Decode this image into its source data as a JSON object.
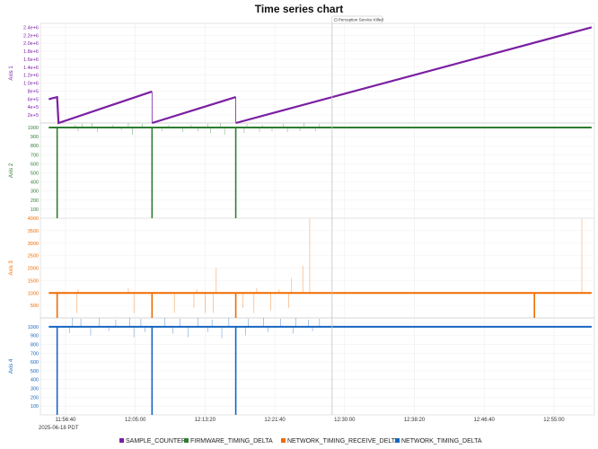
{
  "chart_data": {
    "type": "line",
    "title": "Time series chart",
    "date_label": "2025-06-18 PDT",
    "x_range": [
      "11:53:40",
      "12:59:50"
    ],
    "x_ticks": [
      "11:56:40",
      "12:05:00",
      "12:13:20",
      "12:21:40",
      "12:30:00",
      "12:38:20",
      "12:46:40",
      "12:55:00"
    ],
    "annotation": {
      "time": "12:28:30",
      "label": "Perception Service Killed"
    },
    "legend_position": "bottom",
    "grid": true,
    "series": [
      {
        "name": "SAMPLE_COUNTER",
        "panel": 0,
        "color": "#7b1fa2"
      },
      {
        "name": "FIRMWARE_TIMING_DELTA",
        "panel": 1,
        "color": "#2e7d32"
      },
      {
        "name": "NETWORK_TIMING_RECEIVE_DELTA",
        "panel": 2,
        "color": "#ef6c00"
      },
      {
        "name": "NETWORK_TIMING_DELTA",
        "panel": 3,
        "color": "#1565c0"
      }
    ],
    "panels": [
      {
        "ylabel": "Axis 1",
        "color": "#7b1fa2",
        "ylim": [
          0,
          2500000
        ],
        "yticks": [
          "2e+5",
          "4e+5",
          "6e+5",
          "8e+5",
          "1.0e+6",
          "1.2e+6",
          "1.4e+6",
          "1.6e+6",
          "1.8e+6",
          "2.0e+6",
          "2.2e+6",
          "2.4e+6"
        ],
        "ytick_values": [
          200000,
          400000,
          600000,
          800000,
          1000000,
          1200000,
          1400000,
          1600000,
          1800000,
          2000000,
          2200000,
          2400000
        ],
        "segments": [
          [
            [
              "11:54:40",
              600000
            ],
            [
              "11:55:40",
              650000
            ],
            [
              "11:55:50",
              0
            ],
            [
              "12:07:00",
              790000
            ]
          ],
          [
            [
              "12:07:00",
              0
            ],
            [
              "12:17:00",
              650000
            ]
          ],
          [
            [
              "12:17:00",
              0
            ],
            [
              "12:59:30",
              2400000
            ]
          ]
        ]
      },
      {
        "ylabel": "Axis 2",
        "color": "#2e7d32",
        "ylim": [
          0,
          1050
        ],
        "yticks": [
          "100",
          "200",
          "300",
          "400",
          "500",
          "600",
          "700",
          "800",
          "900",
          "1000"
        ],
        "ytick_values": [
          100,
          200,
          300,
          400,
          500,
          600,
          700,
          800,
          900,
          1000
        ],
        "baseline": 1000,
        "line_start": "11:54:40",
        "line_end": "12:59:30",
        "drops": [
          [
            "11:55:40",
            0
          ],
          [
            "12:07:00",
            0
          ],
          [
            "12:17:00",
            0
          ]
        ],
        "spikes": [
          [
            "11:57:50",
            1030
          ],
          [
            "11:58:40",
            1040
          ],
          [
            "11:59:50",
            1050
          ],
          [
            "12:02:20",
            1030
          ],
          [
            "12:04:10",
            1050
          ],
          [
            "12:05:50",
            1040
          ],
          [
            "12:09:00",
            1030
          ],
          [
            "12:11:40",
            1030
          ],
          [
            "12:13:40",
            1040
          ],
          [
            "12:15:10",
            1050
          ],
          [
            "12:18:20",
            1040
          ],
          [
            "12:20:10",
            1030
          ],
          [
            "12:22:40",
            1040
          ],
          [
            "12:25:10",
            1050
          ],
          [
            "12:27:00",
            1040
          ]
        ],
        "dips": [
          [
            "11:58:10",
            960
          ],
          [
            "12:00:30",
            950
          ],
          [
            "12:03:20",
            970
          ],
          [
            "12:04:40",
            920
          ],
          [
            "12:08:10",
            960
          ],
          [
            "12:10:40",
            950
          ],
          [
            "12:12:30",
            960
          ],
          [
            "12:14:00",
            940
          ],
          [
            "12:15:40",
            920
          ],
          [
            "12:18:00",
            940
          ],
          [
            "12:19:50",
            950
          ],
          [
            "12:21:20",
            960
          ],
          [
            "12:23:10",
            950
          ],
          [
            "12:24:40",
            960
          ],
          [
            "12:26:30",
            960
          ]
        ]
      },
      {
        "ylabel": "Axis 3",
        "color": "#ef6c00",
        "ylim": [
          0,
          4000
        ],
        "yticks": [
          "500",
          "1000",
          "1500",
          "2000",
          "2500",
          "3000",
          "3500",
          "4000"
        ],
        "ytick_values": [
          500,
          1000,
          1500,
          2000,
          2500,
          3000,
          3500,
          4000
        ],
        "baseline": 1000,
        "line_start": "11:54:40",
        "line_end": "12:59:30",
        "drops": [
          [
            "11:55:40",
            0
          ],
          [
            "12:07:00",
            0
          ],
          [
            "12:17:00",
            0
          ],
          [
            "12:52:40",
            0
          ]
        ],
        "spikes": [
          [
            "11:58:10",
            1150
          ],
          [
            "12:04:10",
            1200
          ],
          [
            "12:12:20",
            1150
          ],
          [
            "12:14:40",
            2000
          ],
          [
            "12:19:30",
            1200
          ],
          [
            "12:22:10",
            1150
          ],
          [
            "12:23:40",
            1600
          ],
          [
            "12:25:00",
            2100
          ],
          [
            "12:25:50",
            3990
          ],
          [
            "12:58:20",
            3990
          ]
        ],
        "dips": [
          [
            "11:58:00",
            200
          ],
          [
            "12:04:50",
            200
          ],
          [
            "12:09:40",
            200
          ],
          [
            "12:12:00",
            400
          ],
          [
            "12:13:20",
            200
          ],
          [
            "12:14:20",
            200
          ],
          [
            "12:17:50",
            400
          ],
          [
            "12:19:10",
            200
          ],
          [
            "12:21:10",
            300
          ],
          [
            "12:23:20",
            400
          ]
        ]
      },
      {
        "ylabel": "Axis 4",
        "color": "#1565c0",
        "ylim": [
          0,
          1100
        ],
        "yticks": [
          "100",
          "200",
          "300",
          "400",
          "500",
          "600",
          "700",
          "800",
          "900",
          "1000"
        ],
        "ytick_values": [
          100,
          200,
          300,
          400,
          500,
          600,
          700,
          800,
          900,
          1000
        ],
        "baseline": 1000,
        "line_start": "11:54:40",
        "line_end": "12:59:30",
        "drops": [
          [
            "11:55:40",
            0
          ],
          [
            "12:07:00",
            0
          ],
          [
            "12:17:00",
            0
          ]
        ],
        "spikes": [
          [
            "11:57:30",
            1100
          ],
          [
            "11:58:30",
            1090
          ],
          [
            "12:00:40",
            1100
          ],
          [
            "12:02:40",
            1080
          ],
          [
            "12:04:20",
            1100
          ],
          [
            "12:05:40",
            1090
          ],
          [
            "12:08:30",
            1100
          ],
          [
            "12:10:20",
            1090
          ],
          [
            "12:12:30",
            1100
          ],
          [
            "12:14:10",
            1080
          ],
          [
            "12:16:10",
            1100
          ],
          [
            "12:18:30",
            1090
          ],
          [
            "12:20:20",
            1100
          ],
          [
            "12:22:20",
            1090
          ],
          [
            "12:24:10",
            1100
          ],
          [
            "12:25:40",
            1080
          ],
          [
            "12:27:00",
            1090
          ]
        ],
        "dips": [
          [
            "11:57:10",
            930
          ],
          [
            "11:59:40",
            900
          ],
          [
            "12:01:50",
            950
          ],
          [
            "12:04:50",
            880
          ],
          [
            "12:06:10",
            940
          ],
          [
            "12:09:30",
            920
          ],
          [
            "12:11:20",
            880
          ],
          [
            "12:13:40",
            940
          ],
          [
            "12:15:20",
            870
          ],
          [
            "12:18:10",
            900
          ],
          [
            "12:20:50",
            940
          ],
          [
            "12:23:50",
            920
          ],
          [
            "12:26:10",
            950
          ]
        ]
      }
    ]
  }
}
